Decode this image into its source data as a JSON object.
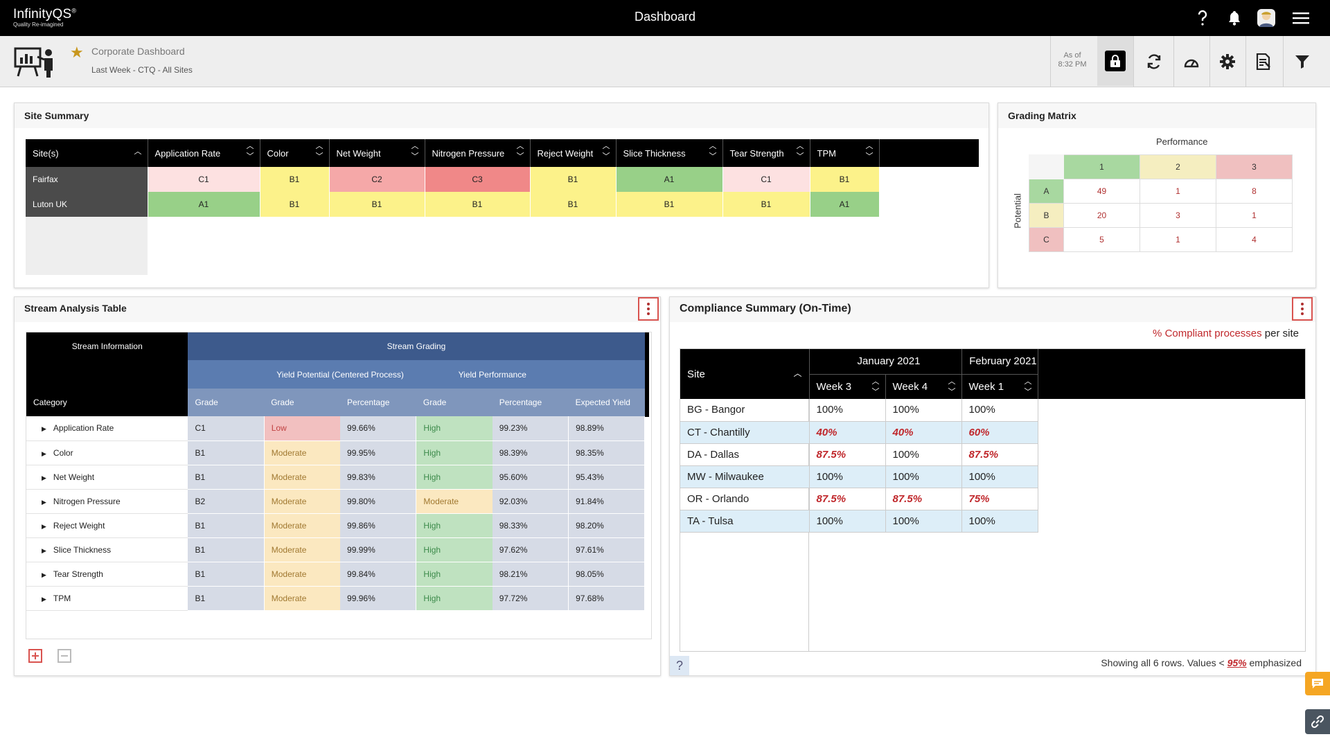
{
  "topbar": {
    "logo_name": "InfinityQS",
    "logo_mark": "®",
    "logo_tagline": "Quality Re-imagined",
    "title": "Dashboard",
    "icons": [
      "help-icon",
      "bell-icon",
      "avatar",
      "menu-icon"
    ]
  },
  "subbar": {
    "dashboard_name": "Corporate Dashboard",
    "dashboard_filter": "Last Week - CTQ - All Sites",
    "as_of_label": "As of",
    "as_of_time": "8:32 PM"
  },
  "site_summary": {
    "title": "Site Summary",
    "site_header": "Site(s)",
    "columns": [
      "Application Rate",
      "Color",
      "Net Weight",
      "Nitrogen Pressure",
      "Reject Weight",
      "Slice Thickness",
      "Tear Strength",
      "TPM"
    ],
    "rows": [
      {
        "site": "Fairfax",
        "cells": [
          "C1",
          "B1",
          "C2",
          "C3",
          "B1",
          "A1",
          "C1",
          "B1"
        ]
      },
      {
        "site": "Luton UK",
        "cells": [
          "A1",
          "B1",
          "B1",
          "B1",
          "B1",
          "B1",
          "B1",
          "A1"
        ]
      }
    ]
  },
  "grading_matrix": {
    "title": "Grading Matrix",
    "x_label": "Performance",
    "y_label": "Potential",
    "cols": [
      "1",
      "2",
      "3"
    ],
    "rows": [
      {
        "label": "A",
        "values": [
          "49",
          "1",
          "8"
        ]
      },
      {
        "label": "B",
        "values": [
          "20",
          "3",
          "1"
        ]
      },
      {
        "label": "C",
        "values": [
          "5",
          "1",
          "4"
        ]
      }
    ]
  },
  "stream_analysis": {
    "title": "Stream Analysis Table",
    "group_info": "Stream Information",
    "group_grading": "Stream Grading",
    "sub_yield_potential": "Yield Potential (Centered Process)",
    "sub_yield_performance": "Yield Performance",
    "col_category": "Category",
    "col_grade": "Grade",
    "col_yp_grade": "Grade",
    "col_yp_pct": "Percentage",
    "col_perf_grade": "Grade",
    "col_perf_pct": "Percentage",
    "col_expected": "Expected Yield",
    "rows": [
      {
        "category": "Application Rate",
        "grade": "C1",
        "yp": "Low",
        "yp_pct": "99.66%",
        "perf": "High",
        "perf_pct": "99.23%",
        "expected": "98.89%"
      },
      {
        "category": "Color",
        "grade": "B1",
        "yp": "Moderate",
        "yp_pct": "99.95%",
        "perf": "High",
        "perf_pct": "98.39%",
        "expected": "98.35%"
      },
      {
        "category": "Net Weight",
        "grade": "B1",
        "yp": "Moderate",
        "yp_pct": "99.83%",
        "perf": "High",
        "perf_pct": "95.60%",
        "expected": "95.43%"
      },
      {
        "category": "Nitrogen Pressure",
        "grade": "B2",
        "yp": "Moderate",
        "yp_pct": "99.80%",
        "perf": "Moderate",
        "perf_pct": "92.03%",
        "expected": "91.84%"
      },
      {
        "category": "Reject Weight",
        "grade": "B1",
        "yp": "Moderate",
        "yp_pct": "99.86%",
        "perf": "High",
        "perf_pct": "98.33%",
        "expected": "98.20%"
      },
      {
        "category": "Slice Thickness",
        "grade": "B1",
        "yp": "Moderate",
        "yp_pct": "99.99%",
        "perf": "High",
        "perf_pct": "97.62%",
        "expected": "97.61%"
      },
      {
        "category": "Tear Strength",
        "grade": "B1",
        "yp": "Moderate",
        "yp_pct": "99.84%",
        "perf": "High",
        "perf_pct": "98.21%",
        "expected": "98.05%"
      },
      {
        "category": "TPM",
        "grade": "B1",
        "yp": "Moderate",
        "yp_pct": "99.96%",
        "perf": "High",
        "perf_pct": "97.72%",
        "expected": "97.68%"
      }
    ]
  },
  "compliance": {
    "title": "Compliance Summary (On-Time)",
    "legend_pct": "%",
    "legend_emph": "Compliant processes",
    "legend_tail": "per site",
    "site_header": "Site",
    "month1": "January 2021",
    "month2": "February 2021",
    "weeks": [
      "Week 3",
      "Week 4",
      "Week 1"
    ],
    "rows": [
      {
        "site": "BG - Bangor",
        "values": [
          "100%",
          "100%",
          "100%"
        ],
        "flags": [
          false,
          false,
          false
        ]
      },
      {
        "site": "CT - Chantilly",
        "values": [
          "40%",
          "40%",
          "60%"
        ],
        "flags": [
          true,
          true,
          true
        ]
      },
      {
        "site": "DA - Dallas",
        "values": [
          "87.5%",
          "100%",
          "87.5%"
        ],
        "flags": [
          true,
          false,
          true
        ]
      },
      {
        "site": "MW - Milwaukee",
        "values": [
          "100%",
          "100%",
          "100%"
        ],
        "flags": [
          false,
          false,
          false
        ]
      },
      {
        "site": "OR - Orlando",
        "values": [
          "87.5%",
          "87.5%",
          "75%"
        ],
        "flags": [
          true,
          true,
          true
        ]
      },
      {
        "site": "TA - Tulsa",
        "values": [
          "100%",
          "100%",
          "100%"
        ],
        "flags": [
          false,
          false,
          false
        ]
      }
    ],
    "footer_prefix": "Showing all 6 rows. Values <",
    "footer_threshold": "95%",
    "footer_suffix": "emphasized"
  },
  "colors": {
    "grade_A": "#98d088",
    "grade_B": "#fcf28a",
    "grade_C_low": "#fde1e1",
    "grade_C_mid": "#f5a8a8",
    "grade_C_high": "#f08888",
    "accent_red": "#c0282c"
  }
}
